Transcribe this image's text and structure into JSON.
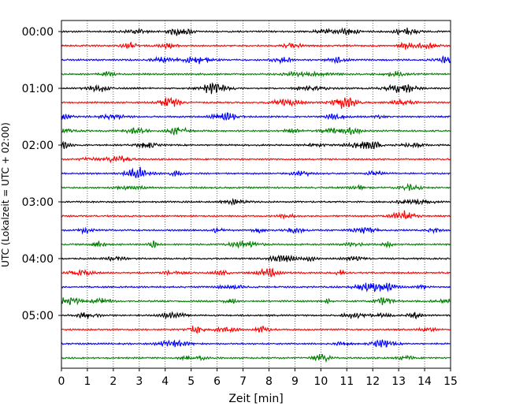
{
  "chart_data": {
    "type": "line",
    "title": "",
    "xlabel": "Zeit  [min]",
    "ylabel": "UTC (Lokalzeit = UTC + 02:00)",
    "xlim": [
      0,
      15
    ],
    "x_ticks": [
      "0",
      "1",
      "2",
      "3",
      "4",
      "5",
      "6",
      "7",
      "8",
      "9",
      "10",
      "11",
      "12",
      "13",
      "14",
      "15"
    ],
    "y_ticks": [
      "00:00",
      "01:00",
      "02:00",
      "03:00",
      "04:00",
      "05:00"
    ],
    "trace_minutes": 15,
    "trace_count": 24,
    "trace_colors": [
      "#000000",
      "#ff0000",
      "#0000ff",
      "#008000"
    ],
    "vertical_grid": "dotted",
    "series": []
  }
}
